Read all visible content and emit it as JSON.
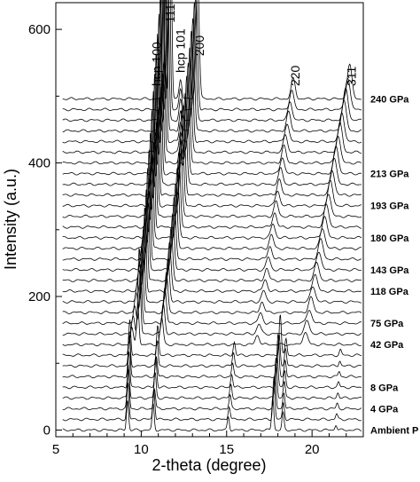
{
  "chart_data": {
    "type": "line",
    "xlabel": "2-theta (degree)",
    "ylabel": "Intensity (a.u.)",
    "xlim": [
      5,
      23
    ],
    "ylim": [
      -10,
      640
    ],
    "x_ticks": [
      5,
      10,
      15,
      20
    ],
    "y_ticks": [
      0,
      200,
      400,
      600
    ],
    "grid": false,
    "trace_count": 32,
    "trace_offset": 16,
    "pressure_labels": [
      {
        "text": "Ambient P",
        "trace": 0
      },
      {
        "text": "4 GPa",
        "trace": 2
      },
      {
        "text": "8 GPa",
        "trace": 4
      },
      {
        "text": "42 GPa",
        "trace": 8
      },
      {
        "text": "75 GPa",
        "trace": 10
      },
      {
        "text": "118 GPa",
        "trace": 13
      },
      {
        "text": "143 GPa",
        "trace": 15
      },
      {
        "text": "180 GPa",
        "trace": 18
      },
      {
        "text": "193 GPa",
        "trace": 21
      },
      {
        "text": "213 GPa",
        "trace": 24
      },
      {
        "text": "240 GPa",
        "trace": 31
      }
    ],
    "peak_labels": [
      {
        "text": "hcp 100",
        "x": 10.9,
        "y": 515
      },
      {
        "text": "111",
        "x": 11.7,
        "y": 610
      },
      {
        "text": "hcp 101",
        "x": 12.3,
        "y": 535
      },
      {
        "text": "200",
        "x": 13.4,
        "y": 560
      },
      {
        "text": "220",
        "x": 19.0,
        "y": 515
      },
      {
        "text": "311",
        "x": 22.3,
        "y": 515
      }
    ]
  }
}
